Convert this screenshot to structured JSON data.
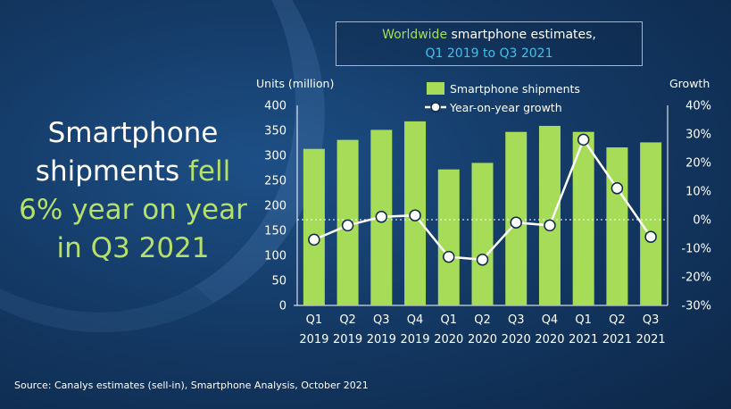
{
  "headline": {
    "part1": "Smartphone",
    "part2": "shipments",
    "part3": "fell",
    "part4": "6% year on year",
    "part5": "in Q3 2021"
  },
  "title_box": {
    "line1_green": "Worldwide",
    "line1_white": "smartphone estimates,",
    "line2": "Q1 2019 to Q3 2021"
  },
  "source": "Source: Canalys estimates (sell-in), Smartphone Analysis, October 2021",
  "colors": {
    "bar": "#a6dc58",
    "line": "#ffffff",
    "headline_accent": "#b5e06b",
    "subtitle": "#3fc1ec"
  },
  "chart_data": {
    "type": "bar",
    "left_axis_title": "Units (million)",
    "right_axis_title": "Growth",
    "legend": {
      "bars": "Smartphone shipments",
      "line": "Year-on-year growth",
      "placement": "top"
    },
    "categories": [
      [
        "Q1",
        "2019"
      ],
      [
        "Q2",
        "2019"
      ],
      [
        "Q3",
        "2019"
      ],
      [
        "Q4",
        "2019"
      ],
      [
        "Q1",
        "2020"
      ],
      [
        "Q2",
        "2020"
      ],
      [
        "Q3",
        "2020"
      ],
      [
        "Q4",
        "2020"
      ],
      [
        "Q1",
        "2021"
      ],
      [
        "Q2",
        "2021"
      ],
      [
        "Q3",
        "2021"
      ]
    ],
    "series": [
      {
        "kind": "bar",
        "axis": "left",
        "values": [
          313,
          331,
          351,
          368,
          272,
          285,
          347,
          359,
          347,
          316,
          326
        ]
      },
      {
        "kind": "line",
        "axis": "right",
        "values": [
          -7,
          -2,
          1,
          1.5,
          -13,
          -14,
          -1,
          -2,
          28,
          11,
          -6
        ]
      }
    ],
    "left_ylim": [
      0,
      400
    ],
    "left_ticks": [
      "0",
      "50",
      "100",
      "150",
      "200",
      "250",
      "300",
      "350",
      "400"
    ],
    "right_ylim": [
      -30,
      40
    ],
    "right_ticks": [
      "-30%",
      "-20%",
      "-10%",
      "0%",
      "10%",
      "20%",
      "30%",
      "40%"
    ],
    "grid": false,
    "zero_line": "dashed"
  }
}
